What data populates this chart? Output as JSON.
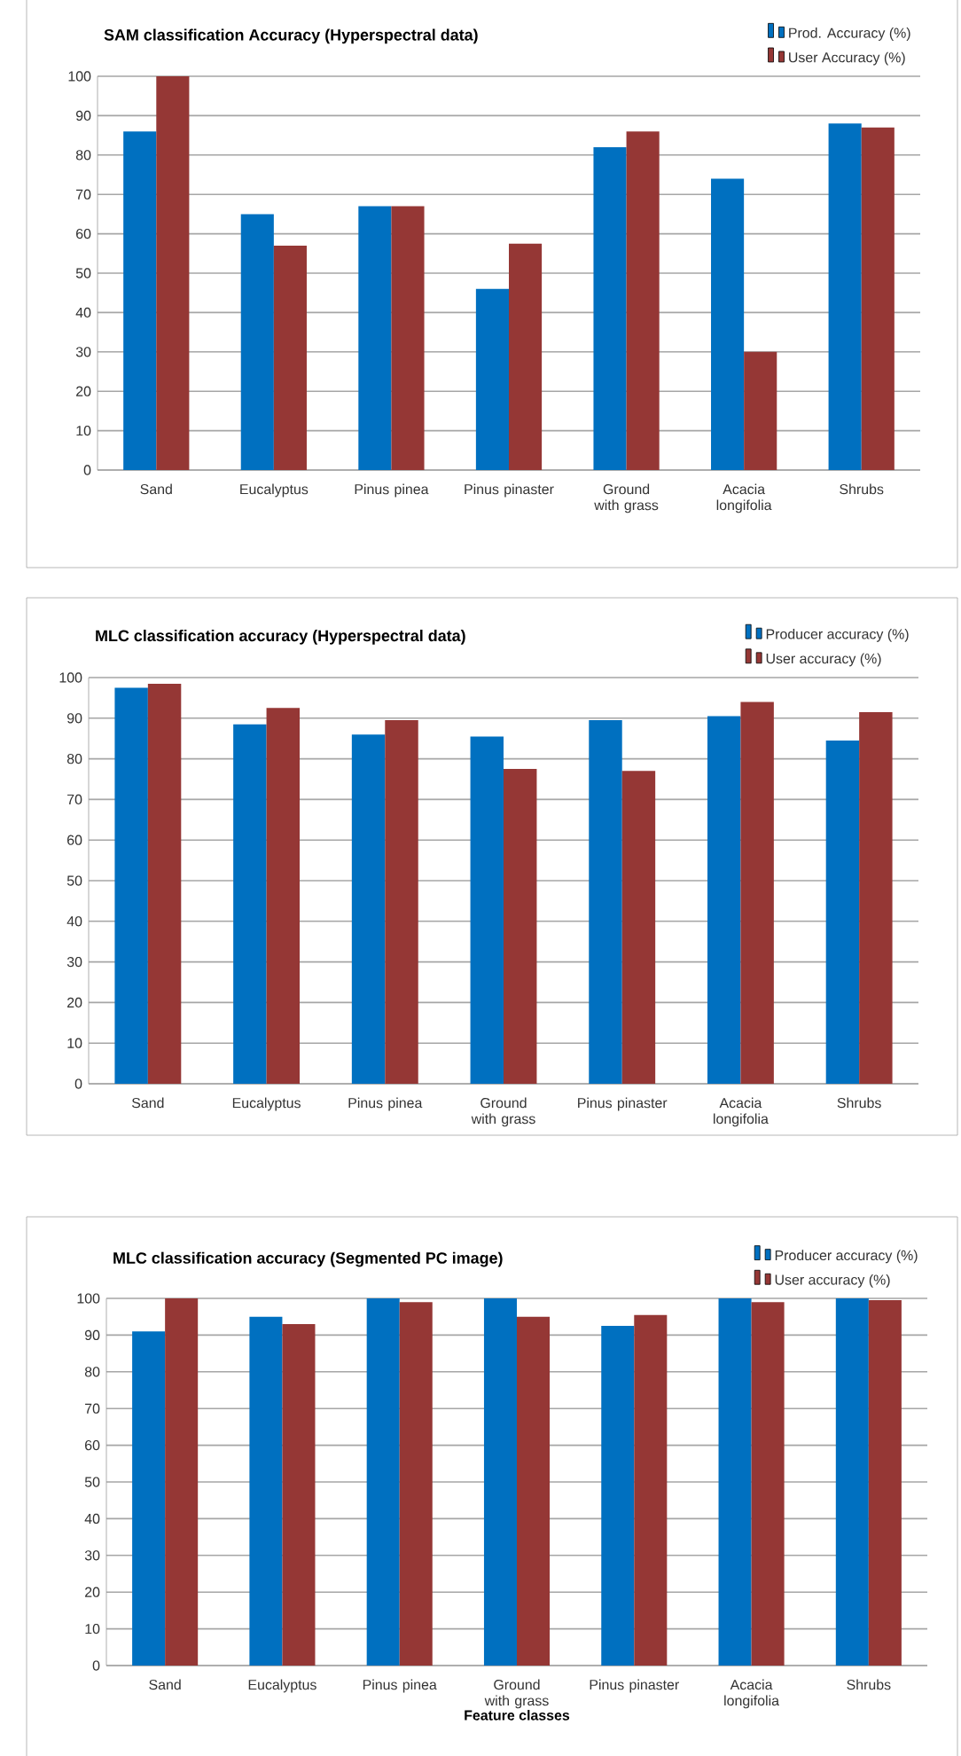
{
  "chart_data": [
    {
      "type": "bar",
      "title": "SAM classification Accuracy  (Hyperspectral data)",
      "categories": [
        "Sand",
        "Eucalyptus",
        "Pinus pinea",
        "Pinus pinaster",
        "Ground with grass",
        "Acacia longifolia",
        "Shrubs"
      ],
      "series": [
        {
          "name": "Prod. Accuracy (%)",
          "color": "#0070c0",
          "values": [
            86,
            65,
            67,
            46,
            82,
            74,
            88
          ]
        },
        {
          "name": "User Accuracy (%)",
          "color": "#953735",
          "values": [
            100,
            57,
            67,
            57.5,
            86,
            30,
            87
          ]
        }
      ],
      "ylim": [
        0,
        100
      ],
      "yticks": [
        0,
        10,
        20,
        30,
        40,
        50,
        60,
        70,
        80,
        90,
        100
      ],
      "grid": "y",
      "legend": "top right"
    },
    {
      "type": "bar",
      "title": "MLC classification accuracy (Hyperspectral data)",
      "categories": [
        "Sand",
        "Eucalyptus",
        "Pinus pinea",
        "Ground with grass",
        "Pinus pinaster",
        "Acacia longifolia",
        "Shrubs"
      ],
      "series": [
        {
          "name": "Producer accuracy (%)",
          "color": "#0070c0",
          "values": [
            97.5,
            88.5,
            86,
            85.5,
            89.5,
            90.5,
            84.5
          ]
        },
        {
          "name": "User accuracy (%)",
          "color": "#953735",
          "values": [
            98.5,
            92.5,
            89.5,
            77.5,
            77,
            94,
            91.5
          ]
        }
      ],
      "ylim": [
        0,
        100
      ],
      "yticks": [
        0,
        10,
        20,
        30,
        40,
        50,
        60,
        70,
        80,
        90,
        100
      ],
      "grid": "y",
      "legend": "top right"
    },
    {
      "type": "bar",
      "title": "MLC classification accuracy (Segmented PC image)",
      "xlabel": "Feature classes",
      "categories": [
        "Sand",
        "Eucalyptus",
        "Pinus pinea",
        "Ground with grass",
        "Pinus pinaster",
        "Acacia longifolia",
        "Shrubs"
      ],
      "series": [
        {
          "name": "Producer accuracy (%)",
          "color": "#0070c0",
          "values": [
            91,
            95,
            100,
            100,
            92.5,
            100,
            100
          ]
        },
        {
          "name": "User accuracy (%)",
          "color": "#953735",
          "values": [
            100,
            93,
            99,
            95,
            95.5,
            99,
            99.5
          ]
        }
      ],
      "ylim": [
        0,
        100
      ],
      "yticks": [
        0,
        10,
        20,
        30,
        40,
        50,
        60,
        70,
        80,
        90,
        100
      ],
      "grid": "y",
      "legend": "top right"
    }
  ]
}
